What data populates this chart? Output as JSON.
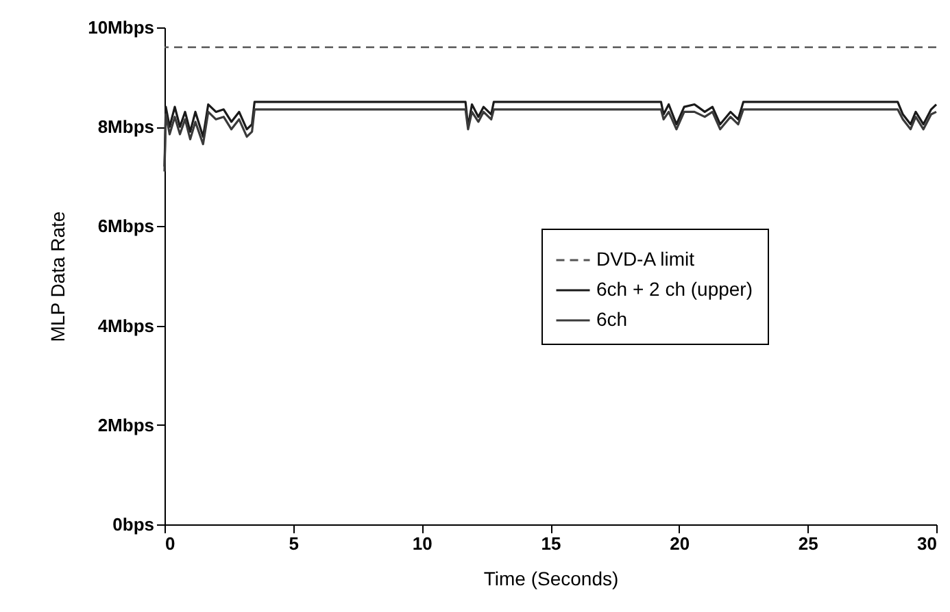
{
  "chart_data": {
    "type": "line",
    "xlabel": "Time (Seconds)",
    "ylabel": "MLP Data Rate",
    "xlim": [
      0,
      30
    ],
    "xticks": [
      0,
      5,
      10,
      15,
      20,
      25,
      30
    ],
    "ylim": [
      0,
      10
    ],
    "yticks": [
      {
        "value": 0,
        "label": "0bps"
      },
      {
        "value": 2,
        "label": "2Mbps"
      },
      {
        "value": 4,
        "label": "4Mbps"
      },
      {
        "value": 6,
        "label": "6Mbps"
      },
      {
        "value": 8,
        "label": "8Mbps"
      },
      {
        "value": 10,
        "label": "10Mbps"
      }
    ],
    "grid": false,
    "legend": "right",
    "marker": "none",
    "line_style": "solid",
    "ref_lines": [
      {
        "axis": "y",
        "value": 9.6,
        "label": "DVD-A limit",
        "color": "#555555",
        "line_style": "dashed"
      }
    ],
    "series": [
      {
        "name": "6ch + 2 ch (upper)",
        "color": "#1a1a1a",
        "x": [
          0,
          0.05,
          0.2,
          0.4,
          0.6,
          0.8,
          1.0,
          1.2,
          1.5,
          1.7,
          2.0,
          2.3,
          2.6,
          2.9,
          3.2,
          3.4,
          3.5,
          11.7,
          11.8,
          11.95,
          12.2,
          12.4,
          12.7,
          12.8,
          19.3,
          19.4,
          19.6,
          19.9,
          20.2,
          20.6,
          21.0,
          21.3,
          21.6,
          22.0,
          22.3,
          22.5,
          28.5,
          28.7,
          29.0,
          29.2,
          29.5,
          29.8,
          30
        ],
        "values": [
          7.2,
          8.4,
          8.0,
          8.4,
          8.0,
          8.3,
          7.9,
          8.3,
          7.8,
          8.45,
          8.3,
          8.35,
          8.1,
          8.3,
          7.95,
          8.05,
          8.5,
          8.5,
          8.0,
          8.45,
          8.2,
          8.4,
          8.25,
          8.5,
          8.5,
          8.25,
          8.45,
          8.05,
          8.4,
          8.45,
          8.3,
          8.4,
          8.05,
          8.3,
          8.15,
          8.5,
          8.5,
          8.25,
          8.05,
          8.3,
          8.05,
          8.35,
          8.45
        ]
      },
      {
        "name": "6ch",
        "color": "#3a3a3a",
        "x": [
          0,
          0.05,
          0.2,
          0.4,
          0.6,
          0.8,
          1.0,
          1.2,
          1.5,
          1.7,
          2.0,
          2.3,
          2.6,
          2.9,
          3.2,
          3.4,
          3.5,
          11.7,
          11.8,
          11.95,
          12.2,
          12.4,
          12.7,
          12.8,
          19.3,
          19.4,
          19.6,
          19.9,
          20.2,
          20.6,
          21.0,
          21.3,
          21.6,
          22.0,
          22.3,
          22.5,
          28.5,
          28.7,
          29.0,
          29.2,
          29.5,
          29.8,
          30
        ],
        "values": [
          7.1,
          8.25,
          7.85,
          8.2,
          7.85,
          8.15,
          7.75,
          8.1,
          7.65,
          8.3,
          8.15,
          8.2,
          7.95,
          8.15,
          7.8,
          7.9,
          8.35,
          8.35,
          7.95,
          8.3,
          8.1,
          8.3,
          8.15,
          8.35,
          8.35,
          8.15,
          8.3,
          7.95,
          8.3,
          8.3,
          8.2,
          8.3,
          7.95,
          8.2,
          8.05,
          8.35,
          8.35,
          8.15,
          7.95,
          8.2,
          7.95,
          8.25,
          8.3
        ]
      }
    ]
  }
}
